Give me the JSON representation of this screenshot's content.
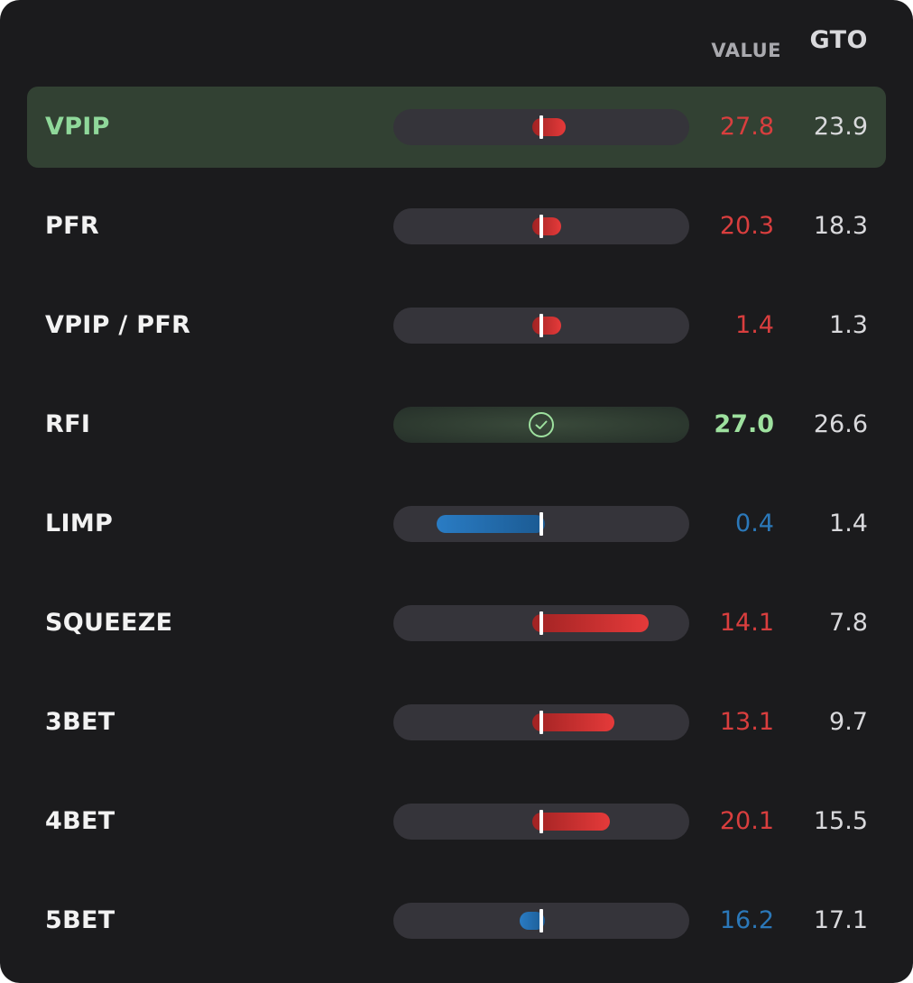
{
  "headers": {
    "value": "VALUE",
    "gto": "GTO"
  },
  "colors": {
    "over": "#d93e3e",
    "under": "#2b78b9",
    "good": "#9ee19f",
    "highlight_row": "#324133"
  },
  "rows": [
    {
      "label": "VPIP",
      "value": "27.8",
      "gto": "23.9",
      "status": "over",
      "highlighted": true,
      "deviation_pct": 0.19
    },
    {
      "label": "PFR",
      "value": "20.3",
      "gto": "18.3",
      "status": "over",
      "highlighted": false,
      "deviation_pct": 0.14
    },
    {
      "label": "VPIP / PFR",
      "value": "1.4",
      "gto": "1.3",
      "status": "over",
      "highlighted": false,
      "deviation_pct": 0.11
    },
    {
      "label": "RFI",
      "value": "27.0",
      "gto": "26.6",
      "status": "good",
      "highlighted": false,
      "deviation_pct": 0,
      "icon": "check-circle-icon"
    },
    {
      "label": "LIMP",
      "value": "0.4",
      "gto": "1.4",
      "status": "under",
      "highlighted": false,
      "deviation_pct": 0.83
    },
    {
      "label": "SQUEEZE",
      "value": "14.1",
      "gto": "7.8",
      "status": "over",
      "highlighted": false,
      "deviation_pct": 0.85
    },
    {
      "label": "3BET",
      "value": "13.1",
      "gto": "9.7",
      "status": "over",
      "highlighted": false,
      "deviation_pct": 0.58
    },
    {
      "label": "4BET",
      "value": "20.1",
      "gto": "15.5",
      "status": "over",
      "highlighted": false,
      "deviation_pct": 0.54
    },
    {
      "label": "5BET",
      "value": "16.2",
      "gto": "17.1",
      "status": "under",
      "highlighted": false,
      "deviation_pct": 0.17
    }
  ]
}
